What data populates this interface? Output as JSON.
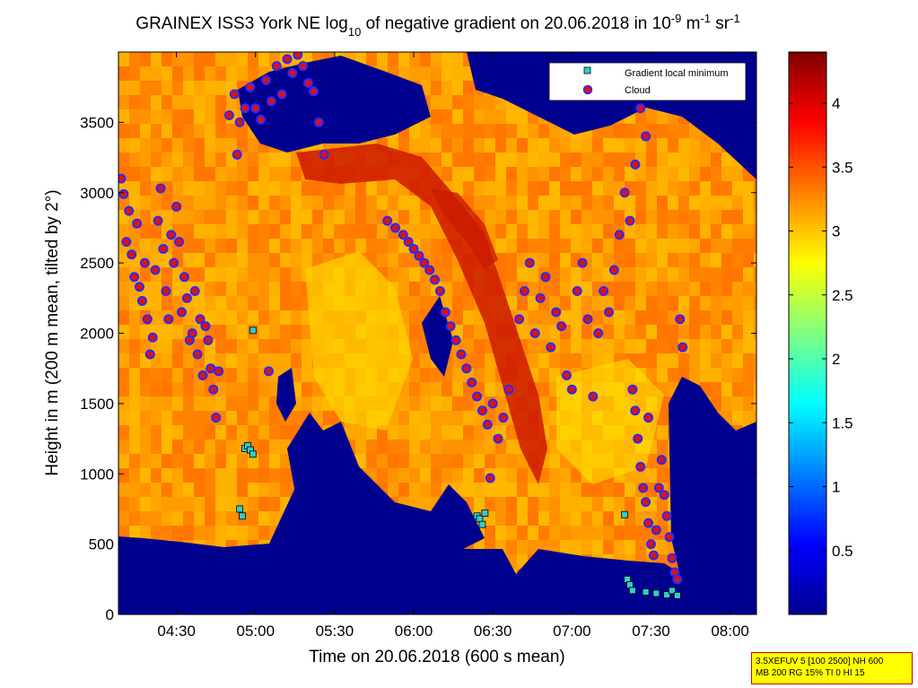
{
  "chart_data": {
    "type": "heatmap",
    "title": {
      "prefix": "GRAINEX ISS3 York NE log",
      "log_base": "10",
      "middle": " of negative gradient on 20.06.2018 in 10",
      "exp1": "-9",
      "unit1": " m",
      "exp2": "-1",
      "unit2": " sr",
      "exp3": "-1"
    },
    "xlabel": "Time on 20.06.2018 (600 s mean)",
    "ylabel": "Height in m (200 m mean, tilted by 2°)",
    "xlim_minutes": [
      248,
      490
    ],
    "ylim": [
      0,
      4000
    ],
    "x_ticks": [
      {
        "label": "04:30",
        "minutes": 270
      },
      {
        "label": "05:00",
        "minutes": 300
      },
      {
        "label": "05:30",
        "minutes": 330
      },
      {
        "label": "06:00",
        "minutes": 360
      },
      {
        "label": "06:30",
        "minutes": 390
      },
      {
        "label": "07:00",
        "minutes": 420
      },
      {
        "label": "07:30",
        "minutes": 450
      },
      {
        "label": "08:00",
        "minutes": 480
      }
    ],
    "y_ticks": [
      0,
      500,
      1000,
      1500,
      2000,
      2500,
      3000,
      3500
    ],
    "colorbar": {
      "range": [
        0,
        4.4
      ],
      "ticks": [
        "0.5",
        "1",
        "1.5",
        "2",
        "2.5",
        "3",
        "3.5",
        "4"
      ]
    },
    "legend": {
      "position": "top-right",
      "entries": [
        {
          "name": "Gradient local minimum",
          "marker": "square",
          "color": "#33cccc"
        },
        {
          "name": "Cloud",
          "marker": "circle",
          "color": "#e01010"
        }
      ]
    },
    "series": [
      {
        "name": "Cloud",
        "points": [
          [
            249,
            3100
          ],
          [
            250,
            2990
          ],
          [
            251,
            2650
          ],
          [
            252,
            2870
          ],
          [
            253,
            2560
          ],
          [
            254,
            2400
          ],
          [
            255,
            2780
          ],
          [
            256,
            2330
          ],
          [
            257,
            2230
          ],
          [
            258,
            2500
          ],
          [
            259,
            2100
          ],
          [
            260,
            1850
          ],
          [
            261,
            1970
          ],
          [
            262,
            2450
          ],
          [
            263,
            2800
          ],
          [
            264,
            3030
          ],
          [
            265,
            2600
          ],
          [
            266,
            2300
          ],
          [
            267,
            2100
          ],
          [
            268,
            2700
          ],
          [
            269,
            2500
          ],
          [
            270,
            2900
          ],
          [
            271,
            2650
          ],
          [
            272,
            2150
          ],
          [
            273,
            2400
          ],
          [
            274,
            2250
          ],
          [
            275,
            1950
          ],
          [
            276,
            2000
          ],
          [
            277,
            2300
          ],
          [
            278,
            1850
          ],
          [
            279,
            2100
          ],
          [
            280,
            1700
          ],
          [
            281,
            2050
          ],
          [
            282,
            1950
          ],
          [
            283,
            1750
          ],
          [
            284,
            1600
          ],
          [
            285,
            1400
          ],
          [
            286,
            1730
          ],
          [
            290,
            3550
          ],
          [
            292,
            3700
          ],
          [
            294,
            3500
          ],
          [
            296,
            3600
          ],
          [
            298,
            3750
          ],
          [
            300,
            3600
          ],
          [
            302,
            3520
          ],
          [
            304,
            3800
          ],
          [
            306,
            3650
          ],
          [
            308,
            3900
          ],
          [
            310,
            3700
          ],
          [
            312,
            3950
          ],
          [
            314,
            3850
          ],
          [
            316,
            3980
          ],
          [
            318,
            3900
          ],
          [
            320,
            3780
          ],
          [
            322,
            3720
          ],
          [
            324,
            3500
          ],
          [
            326,
            3270
          ],
          [
            305,
            1730
          ],
          [
            350,
            2800
          ],
          [
            353,
            2750
          ],
          [
            356,
            2700
          ],
          [
            358,
            2650
          ],
          [
            360,
            2600
          ],
          [
            362,
            2550
          ],
          [
            364,
            2500
          ],
          [
            366,
            2450
          ],
          [
            368,
            2380
          ],
          [
            370,
            2300
          ],
          [
            372,
            2150
          ],
          [
            374,
            2050
          ],
          [
            376,
            1950
          ],
          [
            378,
            1850
          ],
          [
            380,
            1750
          ],
          [
            382,
            1650
          ],
          [
            384,
            1550
          ],
          [
            386,
            1450
          ],
          [
            388,
            1350
          ],
          [
            390,
            1500
          ],
          [
            392,
            1250
          ],
          [
            394,
            1400
          ],
          [
            396,
            1600
          ],
          [
            400,
            2100
          ],
          [
            402,
            2300
          ],
          [
            404,
            2500
          ],
          [
            406,
            2000
          ],
          [
            408,
            2250
          ],
          [
            410,
            2400
          ],
          [
            412,
            1900
          ],
          [
            414,
            2150
          ],
          [
            416,
            2050
          ],
          [
            418,
            1700
          ],
          [
            420,
            1600
          ],
          [
            422,
            2300
          ],
          [
            424,
            2500
          ],
          [
            426,
            2100
          ],
          [
            428,
            1550
          ],
          [
            430,
            2000
          ],
          [
            432,
            2300
          ],
          [
            434,
            2150
          ],
          [
            436,
            2450
          ],
          [
            438,
            2700
          ],
          [
            440,
            3000
          ],
          [
            442,
            2800
          ],
          [
            444,
            3200
          ],
          [
            446,
            3600
          ],
          [
            448,
            3400
          ],
          [
            449,
            1400
          ],
          [
            443,
            1600
          ],
          [
            444,
            1450
          ],
          [
            445,
            1250
          ],
          [
            446,
            1050
          ],
          [
            447,
            900
          ],
          [
            448,
            800
          ],
          [
            449,
            650
          ],
          [
            450,
            500
          ],
          [
            451,
            420
          ],
          [
            452,
            600
          ],
          [
            453,
            900
          ],
          [
            454,
            1100
          ],
          [
            455,
            850
          ],
          [
            456,
            700
          ],
          [
            457,
            550
          ],
          [
            458,
            400
          ],
          [
            459,
            300
          ],
          [
            460,
            250
          ],
          [
            461,
            2100
          ],
          [
            462,
            1900
          ],
          [
            389,
            970
          ],
          [
            293,
            3270
          ]
        ]
      },
      {
        "name": "Gradient local minimum",
        "points": [
          [
            296,
            1180
          ],
          [
            297,
            1200
          ],
          [
            298,
            1170
          ],
          [
            299,
            1140
          ],
          [
            294,
            750
          ],
          [
            295,
            700
          ],
          [
            299,
            2020
          ],
          [
            384,
            700
          ],
          [
            385,
            680
          ],
          [
            386,
            640
          ],
          [
            387,
            720
          ],
          [
            440,
            710
          ],
          [
            441,
            250
          ],
          [
            442,
            210
          ],
          [
            443,
            170
          ],
          [
            448,
            160
          ],
          [
            452,
            150
          ],
          [
            456,
            140
          ],
          [
            458,
            170
          ],
          [
            460,
            135
          ]
        ]
      }
    ],
    "annotation_box": {
      "line1": "3.5XEFUV 5 [100 2500] NH 600",
      "line2": "MB 200 RG 15% TI 0 HI 15"
    }
  },
  "colors": {
    "background_low": "#00008f",
    "cloud_marker_fill": "#e01010",
    "cloud_marker_edge": "#ffffff",
    "gradient_marker_fill": "#33cccc",
    "annotation_fill": "#ffff00",
    "annotation_border": "#d00000"
  }
}
